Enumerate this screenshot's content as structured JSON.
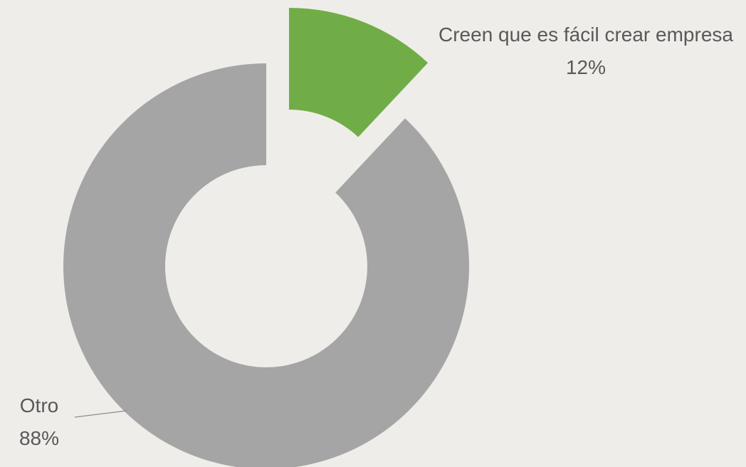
{
  "chart_data": {
    "type": "donut",
    "categories": [
      "Creen que es fácil crear empresa",
      "Otro"
    ],
    "values": [
      12,
      88
    ],
    "value_labels": [
      "12%",
      "88%"
    ],
    "colors": [
      "#70ad47",
      "#a5a5a5"
    ]
  }
}
